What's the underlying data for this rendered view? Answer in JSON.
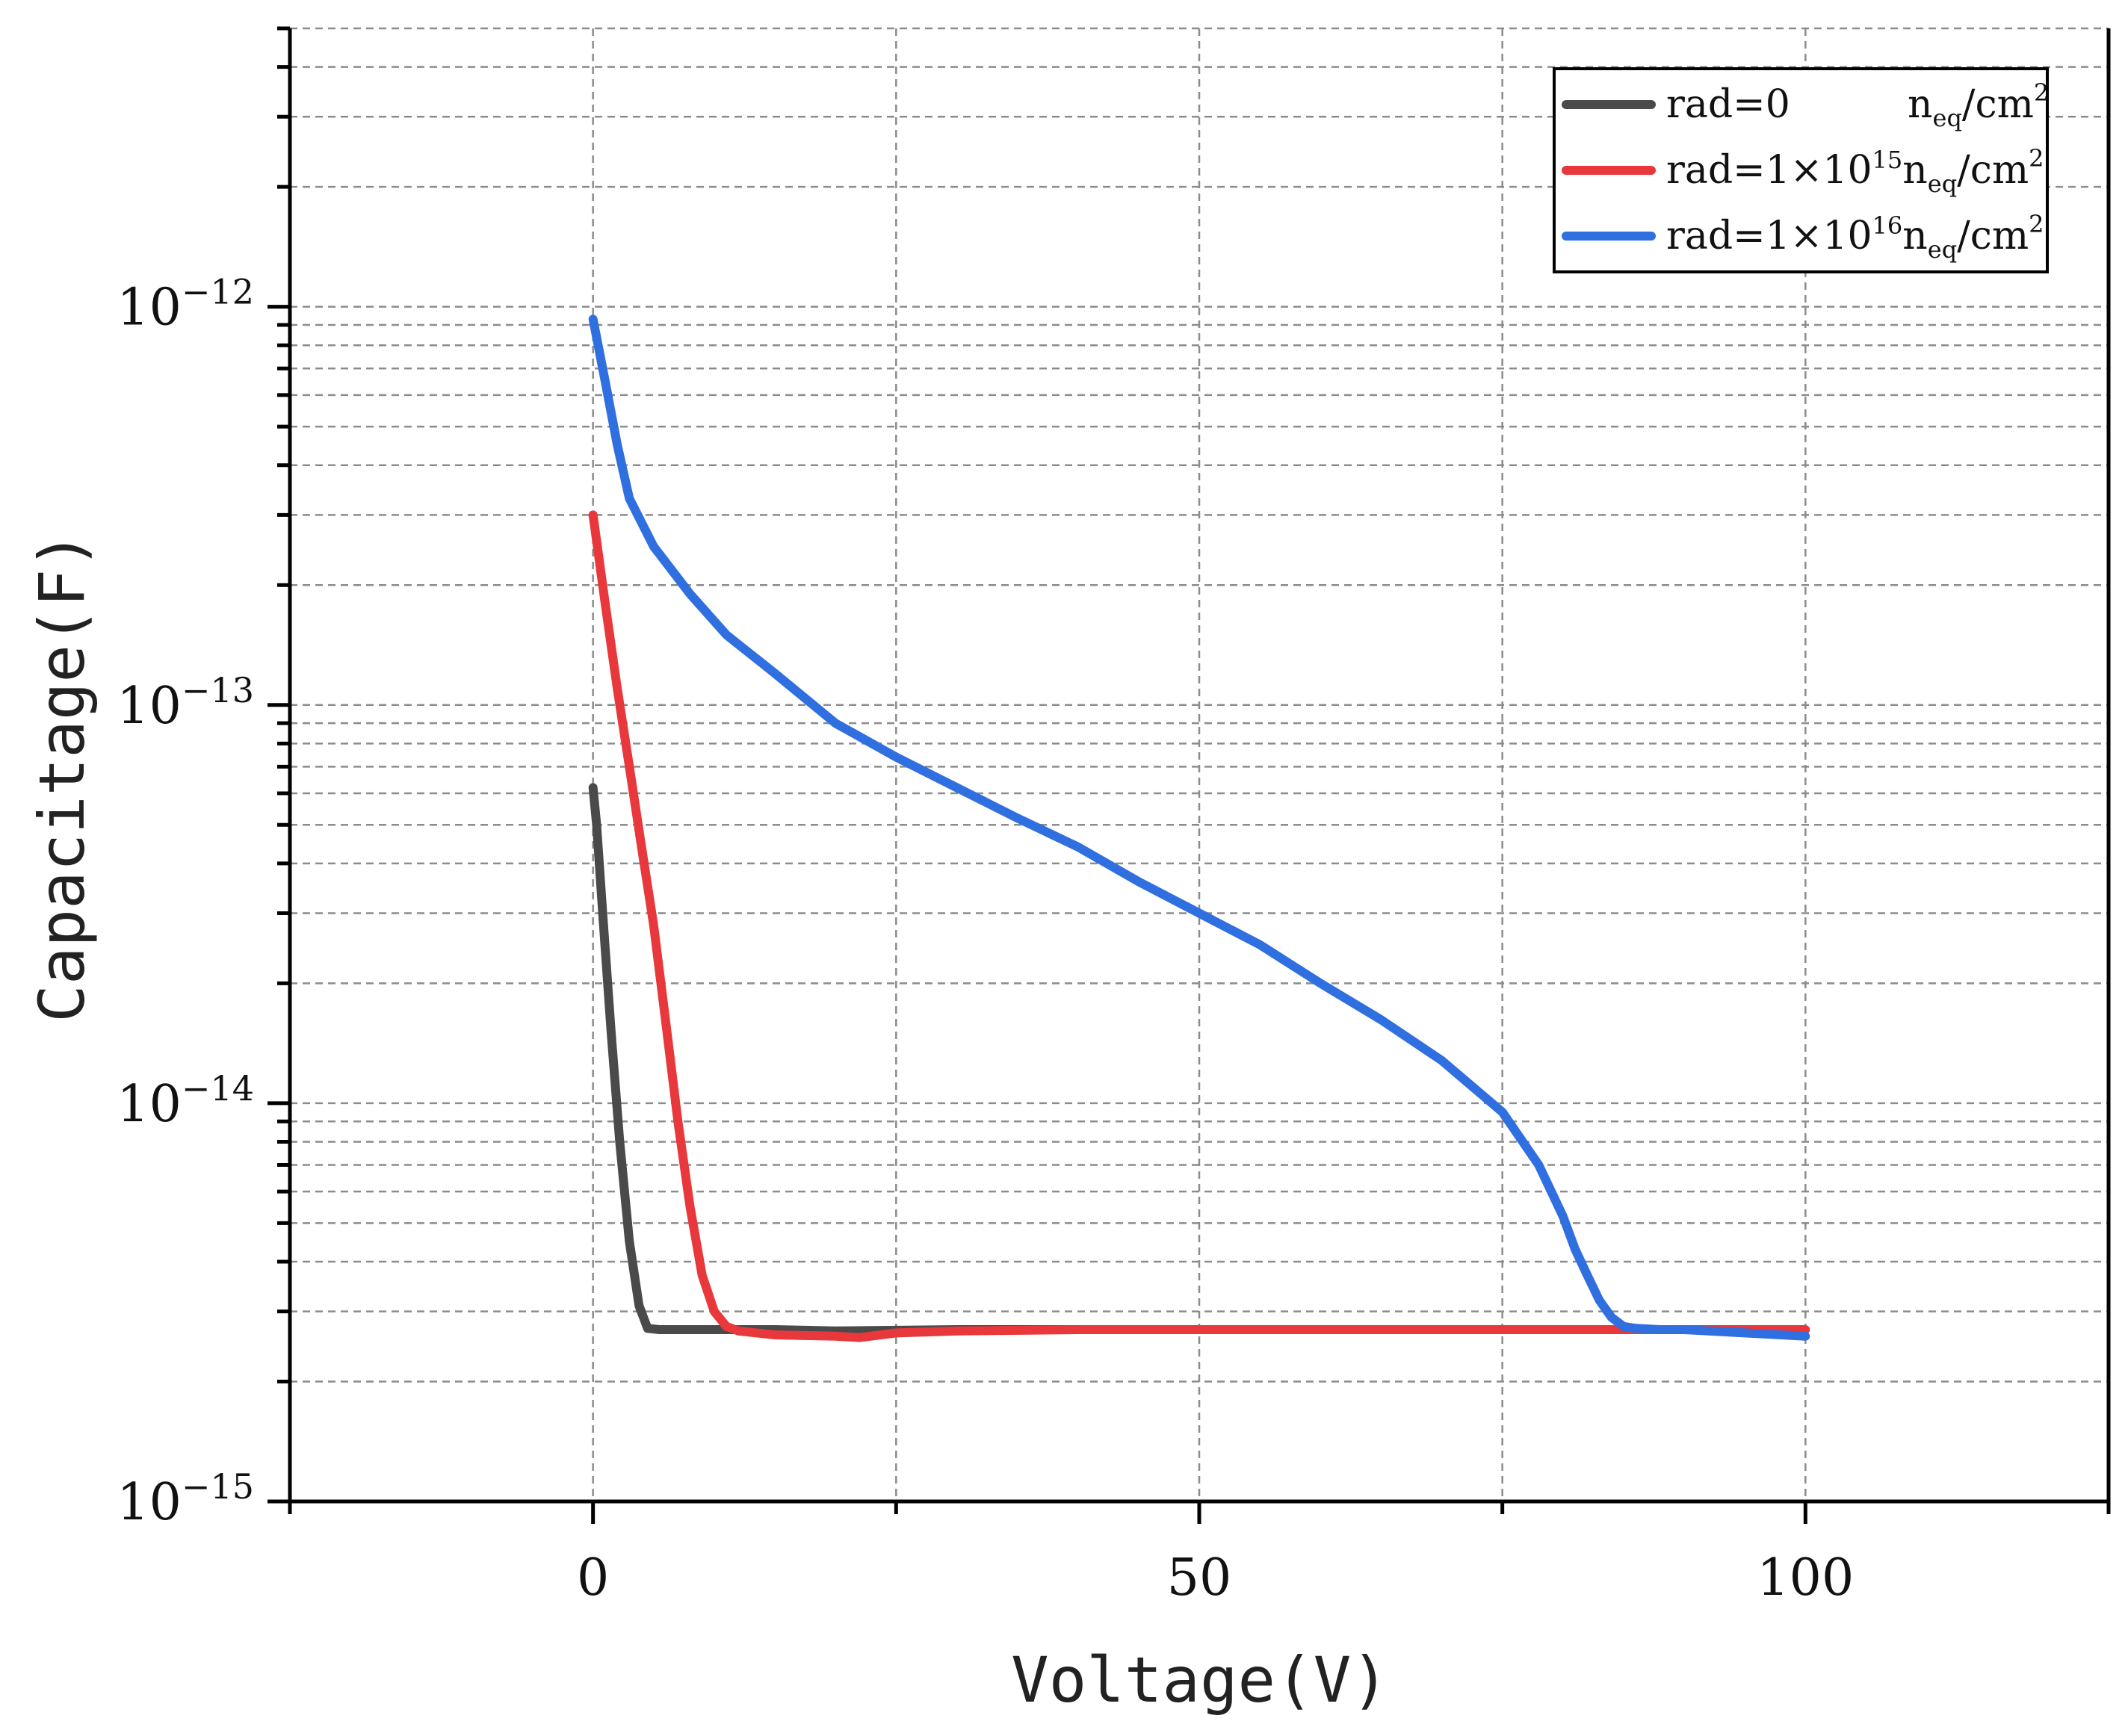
{
  "chart_data": {
    "type": "line",
    "title": "",
    "xlabel": "Voltage(V)",
    "ylabel": "Capacitage(F)",
    "xlim": [
      -25,
      125
    ],
    "ylim": [
      1e-15,
      5e-12
    ],
    "yscale": "log",
    "grid": true,
    "legend_position": "top-right",
    "x_ticks": [
      {
        "value": 0,
        "label": "0"
      },
      {
        "value": 50,
        "label": "50"
      },
      {
        "value": 100,
        "label": "100"
      }
    ],
    "x_minor_ticks": [
      -25,
      25,
      75,
      125
    ],
    "y_ticks": [
      {
        "value": 1e-15,
        "base": "10",
        "exp": "−15"
      },
      {
        "value": 1e-14,
        "base": "10",
        "exp": "−14"
      },
      {
        "value": 1e-13,
        "base": "10",
        "exp": "−13"
      },
      {
        "value": 1e-12,
        "base": "10",
        "exp": "−12"
      }
    ],
    "series": [
      {
        "name": "rad=0 n_eq/cm^2",
        "legend": {
          "prefix": "rad=0",
          "power": "",
          "unit_n": "n",
          "unit_sub": "eq",
          "unit_cm": "/cm",
          "unit_sup": "2"
        },
        "color": "#4a4a4a",
        "x": [
          0,
          0.3,
          0.8,
          1.5,
          2.2,
          3.0,
          3.8,
          4.5,
          5.5,
          7,
          10,
          15,
          20,
          30,
          40
        ],
        "y": [
          6.2e-14,
          5e-14,
          3e-14,
          1.5e-14,
          8e-15,
          4.5e-15,
          3.1e-15,
          2.72e-15,
          2.7e-15,
          2.7e-15,
          2.7e-15,
          2.7e-15,
          2.68e-15,
          2.7e-15,
          2.7e-15
        ]
      },
      {
        "name": "rad=1×10^15 n_eq/cm^2",
        "legend": {
          "prefix": "rad=1×10",
          "power": "15",
          "unit_n": "n",
          "unit_sub": "eq",
          "unit_cm": "/cm",
          "unit_sup": "2"
        },
        "color": "#e8383b",
        "x": [
          0,
          1,
          2,
          3,
          4,
          5,
          6,
          7,
          8,
          9,
          10,
          11,
          12,
          15,
          20,
          22,
          25,
          30,
          40,
          50,
          60,
          70,
          80,
          90,
          100
        ],
        "y": [
          3e-13,
          1.8e-13,
          1.1e-13,
          7e-14,
          4.4e-14,
          2.8e-14,
          1.6e-14,
          9e-15,
          5.5e-15,
          3.7e-15,
          3e-15,
          2.75e-15,
          2.68e-15,
          2.62e-15,
          2.6e-15,
          2.58e-15,
          2.65e-15,
          2.68e-15,
          2.7e-15,
          2.7e-15,
          2.7e-15,
          2.7e-15,
          2.7e-15,
          2.7e-15,
          2.7e-15
        ]
      },
      {
        "name": "rad=1×10^16 n_eq/cm^2",
        "legend": {
          "prefix": "rad=1×10",
          "power": "16",
          "unit_n": "n",
          "unit_sub": "eq",
          "unit_cm": "/cm",
          "unit_sup": "2"
        },
        "color": "#2f6fe0",
        "x": [
          0,
          1,
          2,
          3,
          5,
          8,
          11,
          15,
          20,
          25,
          30,
          35,
          40,
          45,
          50,
          55,
          60,
          65,
          70,
          75,
          78,
          80,
          81,
          82,
          83,
          84,
          85,
          86,
          88,
          90,
          95,
          100
        ],
        "y": [
          9.3e-13,
          6.5e-13,
          4.5e-13,
          3.3e-13,
          2.5e-13,
          1.9e-13,
          1.5e-13,
          1.2e-13,
          9e-14,
          7.4e-14,
          6.2e-14,
          5.2e-14,
          4.4e-14,
          3.6e-14,
          3e-14,
          2.5e-14,
          2e-14,
          1.62e-14,
          1.28e-14,
          9.5e-15,
          7e-15,
          5.2e-15,
          4.3e-15,
          3.7e-15,
          3.2e-15,
          2.9e-15,
          2.75e-15,
          2.72e-15,
          2.7e-15,
          2.7e-15,
          2.65e-15,
          2.6e-15
        ]
      }
    ]
  }
}
